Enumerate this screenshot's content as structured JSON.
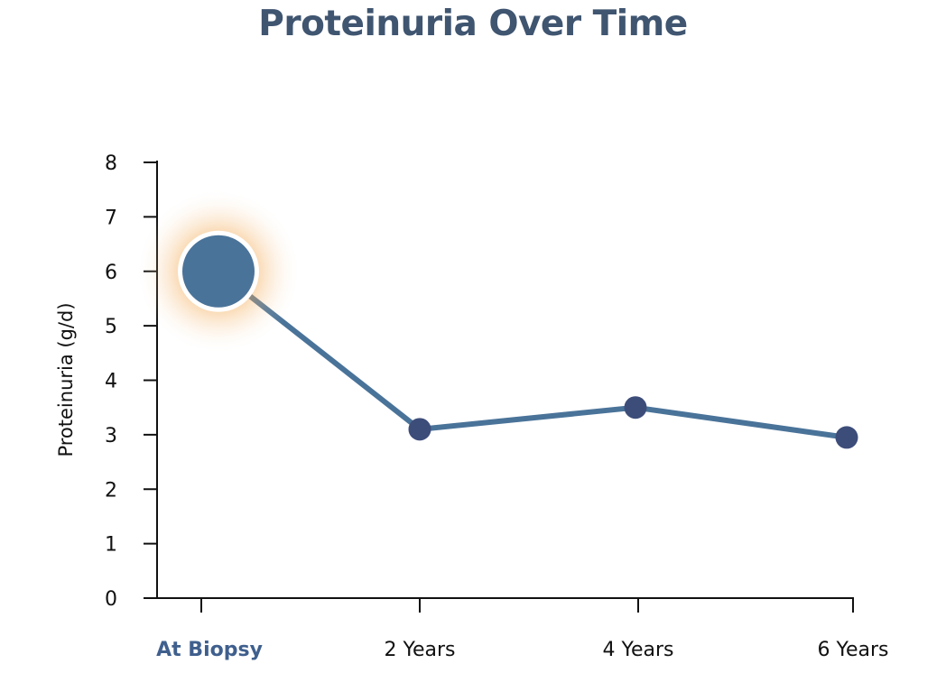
{
  "chart_data": {
    "type": "line",
    "title": "Proteinuria Over Time",
    "xlabel": "",
    "ylabel": "Proteinuria (g/d)",
    "categories": [
      "At Biopsy",
      "2 Years",
      "4 Years",
      "6 Years"
    ],
    "series": [
      {
        "values": [
          6.0,
          3.1,
          3.5,
          2.95
        ]
      }
    ],
    "ylim": [
      0,
      8
    ],
    "yticks": [
      "0",
      "1",
      "2",
      "3",
      "4",
      "5",
      "6",
      "7",
      "8"
    ],
    "highlight_category": "At Biopsy",
    "grid": false,
    "colors": {
      "line": "#4a7399",
      "marker": "#3d4d7a",
      "highlight_marker": "#4a7399",
      "highlight_glow": "#f3a64a",
      "highlight_label": "#3f5f8d",
      "title": "#3f5570"
    }
  }
}
